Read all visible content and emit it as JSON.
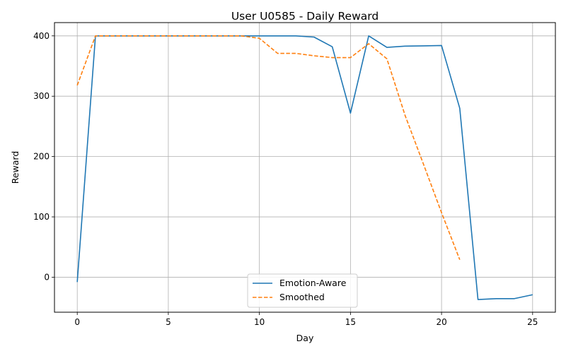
{
  "chart_data": {
    "type": "line",
    "title": "User U0585 - Daily Reward",
    "xlabel": "Day",
    "ylabel": "Reward",
    "xlim": [
      -1.25,
      26.25
    ],
    "ylim": [
      -58,
      422
    ],
    "xticks": [
      0,
      5,
      10,
      15,
      20,
      25
    ],
    "yticks": [
      0,
      100,
      200,
      300,
      400
    ],
    "grid": true,
    "legend_position": "bottom-center",
    "series": [
      {
        "name": "Emotion-Aware",
        "color": "#1f77b4",
        "style": "solid",
        "x": [
          0,
          1,
          2,
          3,
          4,
          5,
          6,
          7,
          8,
          9,
          10,
          11,
          12,
          13,
          14,
          15,
          16,
          17,
          18,
          19,
          20,
          21,
          22,
          23,
          24,
          25
        ],
        "y": [
          -8,
          400,
          400,
          400,
          400,
          400,
          400,
          400,
          400,
          400,
          400,
          400,
          400,
          398,
          382,
          272,
          400,
          381,
          383,
          383.5,
          384,
          280,
          -37,
          -35.5,
          -35.5,
          -29
        ]
      },
      {
        "name": "Smoothed",
        "color": "#ff7f0e",
        "style": "dashed",
        "x": [
          0,
          1,
          2,
          3,
          4,
          5,
          6,
          7,
          8,
          9,
          10,
          11,
          12,
          13,
          14,
          15,
          16,
          17,
          18,
          19,
          20,
          21
        ],
        "y": [
          318,
          400,
          400,
          400,
          400,
          400,
          400,
          400,
          400,
          400,
          396,
          371,
          371,
          367,
          364,
          364,
          387,
          362,
          268,
          188,
          107,
          29
        ]
      }
    ]
  }
}
